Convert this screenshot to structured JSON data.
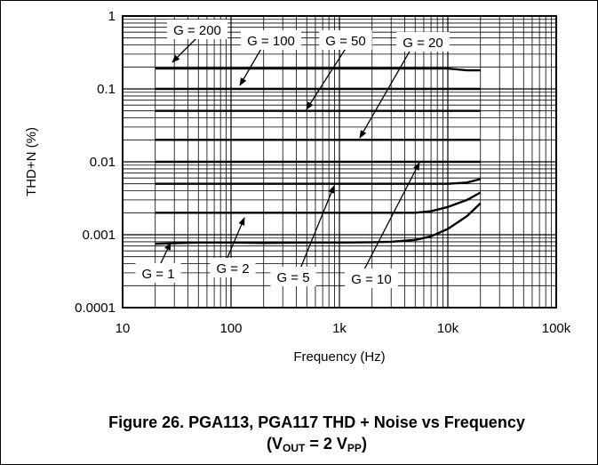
{
  "chart_data": {
    "type": "line",
    "xlabel": "Frequency (Hz)",
    "ylabel": "THD+N (%)",
    "x_scale": "log",
    "y_scale": "log",
    "xlim": [
      10,
      100000
    ],
    "ylim": [
      0.0001,
      1
    ],
    "x_ticks": [
      "10",
      "100",
      "1k",
      "10k",
      "100k"
    ],
    "y_ticks": [
      "1",
      "0.1",
      "0.01",
      "0.001",
      "0.0001"
    ],
    "grid": true,
    "series": [
      {
        "name": "G = 200",
        "x": [
          20,
          50,
          100,
          200,
          500,
          1000,
          2000,
          5000,
          10000,
          15000,
          20000
        ],
        "y": [
          0.19,
          0.19,
          0.19,
          0.19,
          0.19,
          0.19,
          0.19,
          0.19,
          0.19,
          0.18,
          0.18
        ]
      },
      {
        "name": "G = 100",
        "x": [
          20,
          50,
          100,
          200,
          500,
          1000,
          2000,
          5000,
          10000,
          20000
        ],
        "y": [
          0.1,
          0.1,
          0.1,
          0.1,
          0.1,
          0.1,
          0.1,
          0.1,
          0.1,
          0.1
        ]
      },
      {
        "name": "G = 50",
        "x": [
          20,
          50,
          100,
          200,
          500,
          1000,
          2000,
          5000,
          10000,
          20000
        ],
        "y": [
          0.05,
          0.05,
          0.05,
          0.05,
          0.05,
          0.05,
          0.05,
          0.05,
          0.05,
          0.05
        ]
      },
      {
        "name": "G = 20",
        "x": [
          20,
          50,
          100,
          200,
          500,
          1000,
          2000,
          5000,
          10000,
          20000
        ],
        "y": [
          0.02,
          0.02,
          0.02,
          0.02,
          0.02,
          0.02,
          0.02,
          0.02,
          0.02,
          0.02
        ]
      },
      {
        "name": "G = 10",
        "x": [
          20,
          50,
          100,
          200,
          500,
          1000,
          2000,
          5000,
          10000,
          20000
        ],
        "y": [
          0.01,
          0.01,
          0.01,
          0.01,
          0.01,
          0.01,
          0.01,
          0.01,
          0.01,
          0.01
        ]
      },
      {
        "name": "G = 5",
        "x": [
          20,
          50,
          100,
          200,
          500,
          1000,
          2000,
          5000,
          10000,
          15000,
          20000
        ],
        "y": [
          0.005,
          0.005,
          0.005,
          0.005,
          0.005,
          0.005,
          0.005,
          0.005,
          0.005,
          0.0052,
          0.0058
        ]
      },
      {
        "name": "G = 2",
        "x": [
          20,
          50,
          100,
          200,
          500,
          1000,
          2000,
          5000,
          7000,
          10000,
          15000,
          20000
        ],
        "y": [
          0.002,
          0.002,
          0.002,
          0.002,
          0.002,
          0.002,
          0.002,
          0.002,
          0.0021,
          0.0024,
          0.003,
          0.0038
        ]
      },
      {
        "name": "G = 1",
        "x": [
          20,
          50,
          100,
          200,
          500,
          1000,
          2000,
          3000,
          5000,
          7000,
          10000,
          15000,
          20000
        ],
        "y": [
          0.00075,
          0.00078,
          0.00078,
          0.00077,
          0.00078,
          0.00078,
          0.00079,
          0.0008,
          0.00085,
          0.00095,
          0.0012,
          0.0018,
          0.0027
        ]
      }
    ],
    "annotations": [
      {
        "text": "G = 200",
        "series": "G = 200"
      },
      {
        "text": "G = 100",
        "series": "G = 100"
      },
      {
        "text": "G = 50",
        "series": "G = 50"
      },
      {
        "text": "G = 20",
        "series": "G = 20"
      },
      {
        "text": "G = 1",
        "series": "G = 1"
      },
      {
        "text": "G = 2",
        "series": "G = 2"
      },
      {
        "text": "G = 5",
        "series": "G = 5"
      },
      {
        "text": "G = 10",
        "series": "G = 10"
      }
    ]
  },
  "caption": {
    "line1": "Figure 26. PGA113, PGA117 THD + Noise vs Frequency",
    "line2_open": "(V",
    "line2_sub1": "OUT",
    "line2_mid": " = 2 V",
    "line2_sub2": "PP",
    "line2_close": ")"
  }
}
